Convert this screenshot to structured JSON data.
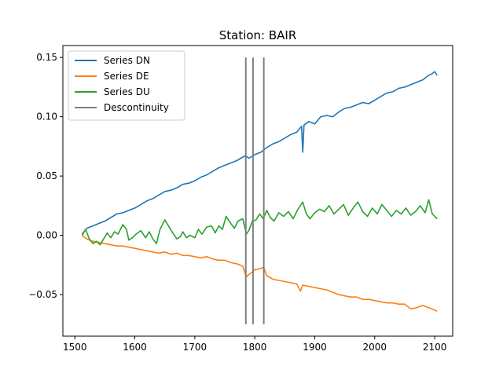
{
  "chart_data": {
    "type": "line",
    "title": "Station: BAIR",
    "xlabel": "",
    "ylabel": "",
    "xlim": [
      1480,
      2130
    ],
    "ylim": [
      -0.085,
      0.16
    ],
    "xticks": [
      1500,
      1600,
      1700,
      1800,
      1900,
      2000,
      2100
    ],
    "xtick_labels": [
      "1500",
      "1600",
      "1700",
      "1800",
      "1900",
      "2000",
      "2100"
    ],
    "yticks": [
      -0.05,
      0.0,
      0.05,
      0.1,
      0.15
    ],
    "ytick_labels": [
      "−0.05",
      "0.00",
      "0.05",
      "0.10",
      "0.15"
    ],
    "grid": false,
    "legend_position": "top-left",
    "series": [
      {
        "name": "Series DN",
        "color": "#1f77b4",
        "x": [
          1512,
          1520,
          1530,
          1540,
          1550,
          1560,
          1570,
          1580,
          1590,
          1600,
          1610,
          1620,
          1630,
          1640,
          1650,
          1660,
          1670,
          1680,
          1690,
          1700,
          1710,
          1720,
          1730,
          1740,
          1750,
          1760,
          1770,
          1780,
          1785,
          1790,
          1800,
          1810,
          1815,
          1820,
          1830,
          1840,
          1850,
          1860,
          1870,
          1878,
          1880,
          1882,
          1890,
          1900,
          1910,
          1920,
          1930,
          1940,
          1950,
          1960,
          1970,
          1980,
          1990,
          2000,
          2010,
          2020,
          2030,
          2040,
          2050,
          2060,
          2070,
          2080,
          2090,
          2095,
          2100,
          2104
        ],
        "y": [
          0.001,
          0.006,
          0.008,
          0.01,
          0.012,
          0.015,
          0.018,
          0.019,
          0.021,
          0.023,
          0.026,
          0.029,
          0.031,
          0.034,
          0.037,
          0.038,
          0.04,
          0.043,
          0.044,
          0.046,
          0.049,
          0.051,
          0.054,
          0.057,
          0.059,
          0.061,
          0.063,
          0.066,
          0.067,
          0.065,
          0.068,
          0.07,
          0.072,
          0.074,
          0.077,
          0.079,
          0.082,
          0.085,
          0.087,
          0.092,
          0.07,
          0.093,
          0.096,
          0.094,
          0.1,
          0.101,
          0.1,
          0.104,
          0.107,
          0.108,
          0.11,
          0.112,
          0.111,
          0.114,
          0.117,
          0.12,
          0.121,
          0.124,
          0.125,
          0.127,
          0.129,
          0.131,
          0.135,
          0.136,
          0.138,
          0.135
        ]
      },
      {
        "name": "Series DE",
        "color": "#ff7f0e",
        "x": [
          1512,
          1520,
          1530,
          1540,
          1550,
          1560,
          1570,
          1580,
          1590,
          1600,
          1610,
          1620,
          1630,
          1640,
          1650,
          1660,
          1670,
          1680,
          1690,
          1700,
          1710,
          1720,
          1730,
          1740,
          1750,
          1760,
          1770,
          1780,
          1786,
          1790,
          1796,
          1800,
          1810,
          1815,
          1820,
          1830,
          1840,
          1850,
          1860,
          1870,
          1876,
          1880,
          1890,
          1900,
          1910,
          1920,
          1930,
          1940,
          1950,
          1960,
          1970,
          1980,
          1990,
          2000,
          2010,
          2020,
          2030,
          2040,
          2050,
          2060,
          2070,
          2080,
          2090,
          2100,
          2104
        ],
        "y": [
          0.0,
          -0.003,
          -0.005,
          -0.006,
          -0.007,
          -0.008,
          -0.009,
          -0.009,
          -0.01,
          -0.011,
          -0.012,
          -0.013,
          -0.014,
          -0.015,
          -0.014,
          -0.016,
          -0.015,
          -0.017,
          -0.017,
          -0.018,
          -0.019,
          -0.018,
          -0.02,
          -0.021,
          -0.021,
          -0.023,
          -0.024,
          -0.026,
          -0.035,
          -0.033,
          -0.031,
          -0.029,
          -0.028,
          -0.027,
          -0.034,
          -0.037,
          -0.038,
          -0.039,
          -0.04,
          -0.041,
          -0.047,
          -0.042,
          -0.043,
          -0.044,
          -0.045,
          -0.046,
          -0.048,
          -0.05,
          -0.051,
          -0.052,
          -0.052,
          -0.054,
          -0.054,
          -0.055,
          -0.056,
          -0.057,
          -0.057,
          -0.058,
          -0.058,
          -0.062,
          -0.061,
          -0.059,
          -0.061,
          -0.063,
          -0.064
        ]
      },
      {
        "name": "Series DU",
        "color": "#2ca02c",
        "x": [
          1512,
          1518,
          1524,
          1530,
          1536,
          1542,
          1548,
          1554,
          1560,
          1566,
          1572,
          1580,
          1586,
          1590,
          1596,
          1602,
          1610,
          1618,
          1624,
          1630,
          1636,
          1642,
          1650,
          1656,
          1662,
          1670,
          1676,
          1680,
          1686,
          1692,
          1700,
          1706,
          1712,
          1720,
          1728,
          1734,
          1740,
          1746,
          1752,
          1760,
          1766,
          1772,
          1780,
          1786,
          1790,
          1796,
          1802,
          1808,
          1814,
          1820,
          1826,
          1832,
          1840,
          1848,
          1856,
          1864,
          1872,
          1880,
          1886,
          1892,
          1900,
          1908,
          1916,
          1924,
          1932,
          1940,
          1948,
          1956,
          1964,
          1972,
          1980,
          1988,
          1996,
          2004,
          2012,
          2020,
          2028,
          2036,
          2044,
          2052,
          2060,
          2068,
          2076,
          2084,
          2090,
          2096,
          2100,
          2104
        ],
        "y": [
          0.0,
          0.005,
          -0.003,
          -0.007,
          -0.005,
          -0.008,
          -0.003,
          0.002,
          -0.002,
          0.003,
          0.001,
          0.009,
          0.005,
          -0.004,
          -0.002,
          0.001,
          0.004,
          -0.002,
          0.003,
          -0.003,
          -0.007,
          0.005,
          0.013,
          0.008,
          0.003,
          -0.003,
          -0.001,
          0.003,
          -0.002,
          0.0,
          -0.002,
          0.005,
          0.001,
          0.007,
          0.008,
          0.002,
          0.008,
          0.005,
          0.016,
          0.01,
          0.006,
          0.012,
          0.014,
          0.001,
          0.004,
          0.012,
          0.013,
          0.018,
          0.014,
          0.021,
          0.015,
          0.012,
          0.019,
          0.016,
          0.02,
          0.014,
          0.022,
          0.028,
          0.018,
          0.014,
          0.019,
          0.022,
          0.02,
          0.025,
          0.018,
          0.022,
          0.026,
          0.017,
          0.023,
          0.028,
          0.02,
          0.016,
          0.023,
          0.018,
          0.026,
          0.021,
          0.016,
          0.021,
          0.018,
          0.023,
          0.017,
          0.02,
          0.025,
          0.019,
          0.03,
          0.018,
          0.016,
          0.014
        ]
      }
    ],
    "discontinuities": {
      "name": "Descontinuity",
      "color": "#7f7f7f",
      "x": [
        1785,
        1797,
        1815
      ],
      "y_range": [
        -0.075,
        0.15
      ]
    }
  }
}
